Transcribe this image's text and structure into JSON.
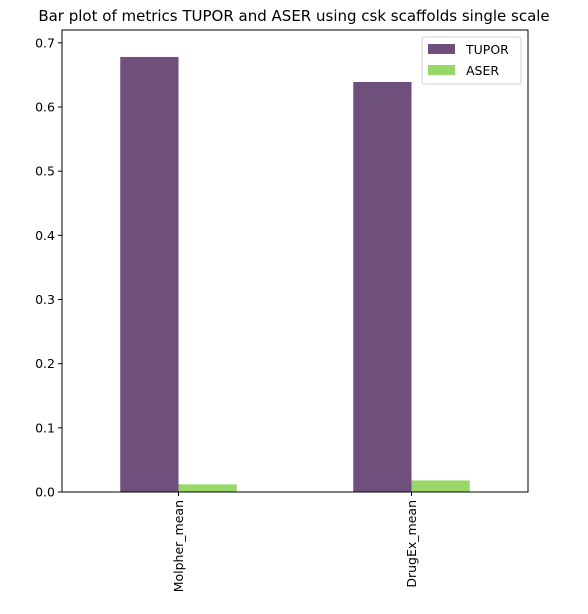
{
  "chart_data": {
    "type": "bar",
    "title": "Bar plot of metrics TUPOR and ASER using csk scaffolds single scale",
    "xlabel": "",
    "ylabel": "",
    "categories": [
      "Molpher_mean",
      "DrugEx_mean"
    ],
    "series": [
      {
        "name": "TUPOR",
        "color": "#6f4f7b",
        "values": [
          0.678,
          0.639
        ]
      },
      {
        "name": "ASER",
        "color": "#98d869",
        "values": [
          0.012,
          0.018
        ]
      }
    ],
    "ylim": [
      0,
      0.72
    ],
    "yticks": [
      0.0,
      0.1,
      0.2,
      0.3,
      0.4,
      0.5,
      0.6,
      0.7
    ],
    "ytick_labels": [
      "0.0",
      "0.1",
      "0.2",
      "0.3",
      "0.4",
      "0.5",
      "0.6",
      "0.7"
    ],
    "grid": false,
    "legend_position": "top-right",
    "x_tick_rotation": "vertical"
  }
}
